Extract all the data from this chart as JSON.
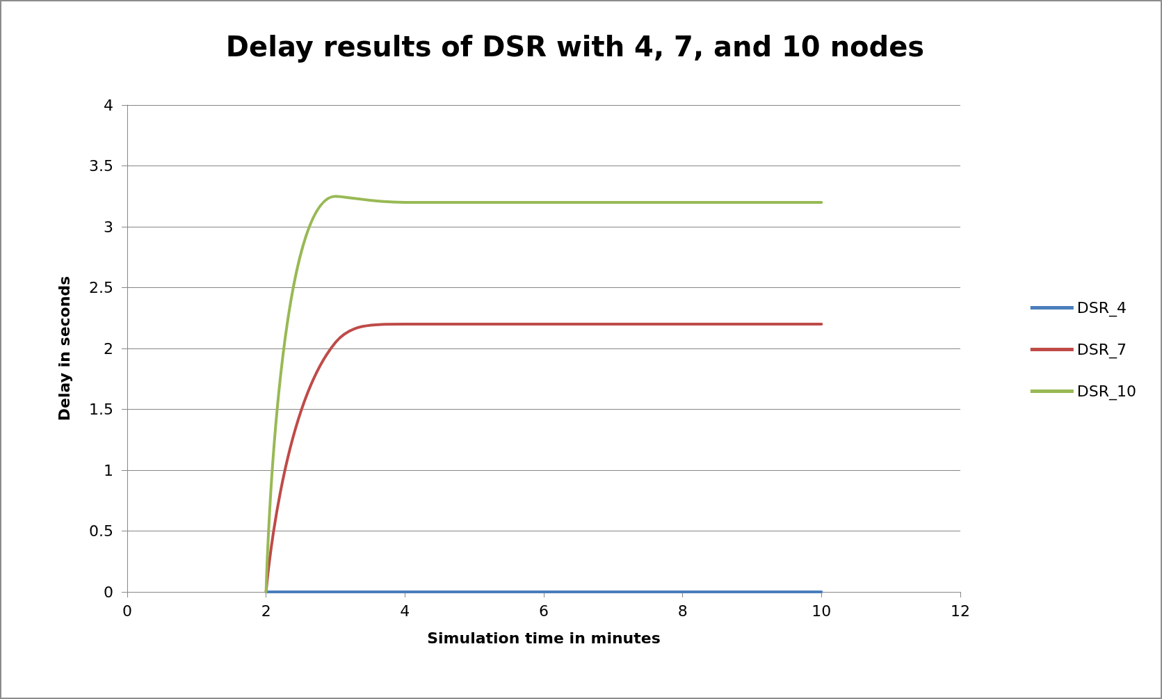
{
  "chart_data": {
    "type": "line",
    "title": "Delay results of DSR with 4, 7, and 10 nodes",
    "xlabel": "Simulation time in minutes",
    "ylabel": "Delay in seconds",
    "x": [
      2,
      3,
      4,
      5,
      6,
      7,
      8,
      9,
      10
    ],
    "series": [
      {
        "name": "DSR_4",
        "color": "#4a7ebb",
        "values": [
          0,
          0,
          0,
          0,
          0,
          0,
          0,
          0,
          0
        ]
      },
      {
        "name": "DSR_7",
        "color": "#be4b48",
        "values": [
          0,
          2.05,
          2.2,
          2.2,
          2.2,
          2.2,
          2.2,
          2.2,
          2.2
        ]
      },
      {
        "name": "DSR_10",
        "color": "#98b954",
        "values": [
          0,
          3.25,
          3.2,
          3.2,
          3.2,
          3.2,
          3.2,
          3.2,
          3.2
        ]
      }
    ],
    "xlim": [
      0,
      12
    ],
    "xticks": [
      0,
      2,
      4,
      6,
      8,
      10,
      12
    ],
    "ylim": [
      0,
      4
    ],
    "yticks": [
      0,
      0.5,
      1,
      1.5,
      2,
      2.5,
      3,
      3.5,
      4
    ],
    "grid": "y",
    "legend": "right",
    "marker": "none",
    "line_style": "solid"
  }
}
